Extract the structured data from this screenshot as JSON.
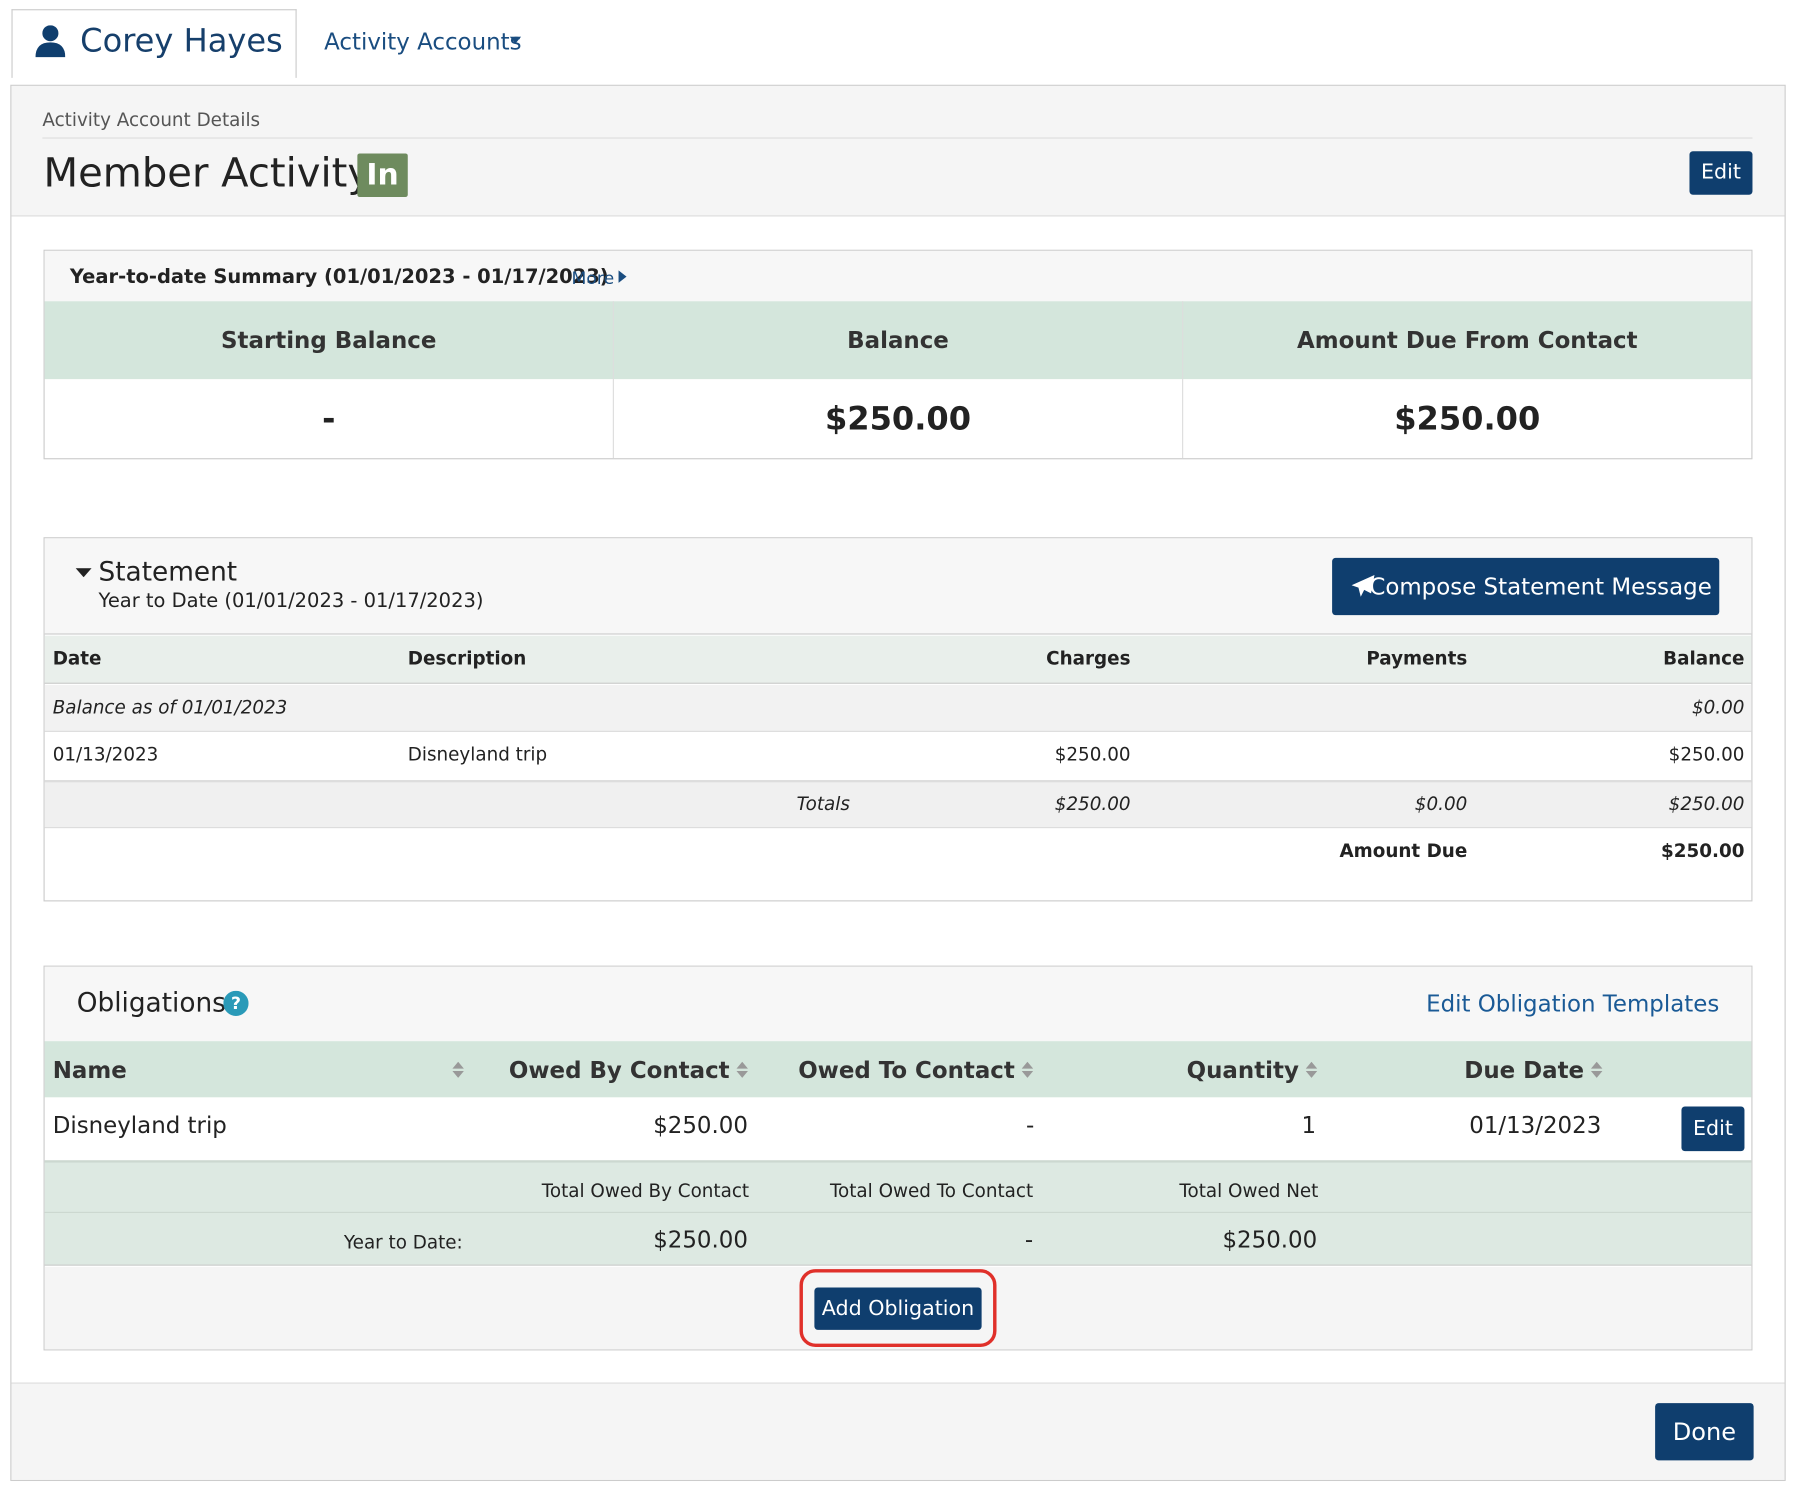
{
  "nav": {
    "user": "Corey Hayes",
    "menu": "Activity Accounts"
  },
  "header": {
    "breadcrumb": "Activity Account Details",
    "title": "Member Activity",
    "badge": "In",
    "edit": "Edit"
  },
  "summary": {
    "title": "Year-to-date Summary (01/01/2023 - 01/17/2023)",
    "more": "More",
    "columns": [
      "Starting Balance",
      "Balance",
      "Amount Due From Contact"
    ],
    "values": [
      "-",
      "$250.00",
      "$250.00"
    ]
  },
  "statement": {
    "title": "Statement",
    "subtitle": "Year to Date (01/01/2023 - 01/17/2023)",
    "button": "Compose Statement Message",
    "columns": [
      "Date",
      "Description",
      "Charges",
      "Payments",
      "Balance"
    ],
    "opening": {
      "label": "Balance as of 01/01/2023",
      "balance": "$0.00"
    },
    "rows": [
      {
        "date": "01/13/2023",
        "description": "Disneyland trip",
        "charges": "$250.00",
        "balance": "$250.00"
      }
    ],
    "totals": {
      "label": "Totals",
      "charges": "$250.00",
      "payments": "$0.00",
      "balance": "$250.00"
    },
    "amount_due": {
      "label": "Amount Due",
      "value": "$250.00"
    }
  },
  "obligations": {
    "title": "Obligations",
    "link": "Edit Obligation Templates",
    "columns": [
      "Name",
      "Owed By Contact",
      "Owed To Contact",
      "Quantity",
      "Due Date"
    ],
    "rows": [
      {
        "name": "Disneyland trip",
        "owed_by": "$250.00",
        "owed_to": "-",
        "quantity": "1",
        "due_date": "01/13/2023",
        "action": "Edit"
      }
    ],
    "totals_labels": [
      "Total Owed By Contact",
      "Total Owed To Contact",
      "Total Owed Net"
    ],
    "ytd": {
      "label": "Year to Date:",
      "owed_by": "$250.00",
      "owed_to": "-",
      "net": "$250.00"
    },
    "add_button": "Add Obligation"
  },
  "footer": {
    "done": "Done"
  }
}
